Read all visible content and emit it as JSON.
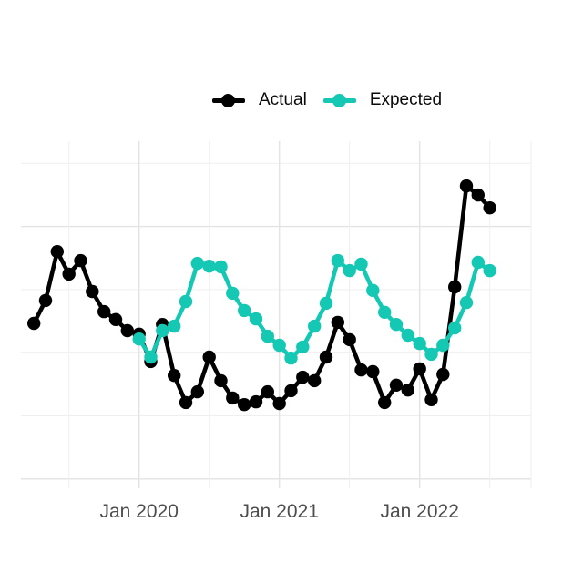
{
  "legend": {
    "items": [
      {
        "label": "Actual",
        "color": "#000000"
      },
      {
        "label": "Expected",
        "color": "#14C8B4"
      }
    ]
  },
  "chart_data": {
    "type": "line",
    "title": "",
    "grid": true,
    "legend_position": "top-center",
    "x_axis": {
      "unit": "month",
      "tick_labels": [
        "Jan 2020",
        "Jan 2021",
        "Jan 2022"
      ],
      "range": [
        "2019-04",
        "2022-07"
      ]
    },
    "y_axis": {
      "labels_shown": false,
      "scale": "unitless index (0 = panel bottom, 100 = panel top); chart displays no y tick labels"
    },
    "series": [
      {
        "name": "Actual",
        "color": "#000000",
        "x": [
          "2019-04",
          "2019-05",
          "2019-06",
          "2019-07",
          "2019-08",
          "2019-09",
          "2019-10",
          "2019-11",
          "2019-12",
          "2020-01",
          "2020-02",
          "2020-03",
          "2020-04",
          "2020-05",
          "2020-06",
          "2020-07",
          "2020-08",
          "2020-09",
          "2020-10",
          "2020-11",
          "2020-12",
          "2021-01",
          "2021-02",
          "2021-03",
          "2021-04",
          "2021-05",
          "2021-06",
          "2021-07",
          "2021-08",
          "2021-09",
          "2021-10",
          "2021-11",
          "2021-12",
          "2022-01",
          "2022-02",
          "2022-03",
          "2022-04",
          "2022-05",
          "2022-06",
          "2022-07"
        ],
        "values": [
          47.5,
          54.1,
          68.2,
          61.7,
          65.6,
          56.7,
          50.9,
          48.6,
          45.4,
          44.4,
          36.5,
          47.2,
          32.5,
          24.7,
          27.8,
          37.8,
          31.0,
          26.0,
          24.1,
          24.9,
          27.8,
          24.4,
          28.1,
          32.0,
          31.0,
          37.8,
          47.8,
          42.8,
          34.1,
          33.6,
          24.7,
          29.7,
          28.3,
          34.4,
          25.5,
          32.8,
          58.0,
          87.1,
          84.5,
          80.8
        ]
      },
      {
        "name": "Expected",
        "color": "#14C8B4",
        "x": [
          "2020-01",
          "2020-02",
          "2020-03",
          "2020-04",
          "2020-05",
          "2020-06",
          "2020-07",
          "2020-08",
          "2020-09",
          "2020-10",
          "2020-11",
          "2020-12",
          "2021-01",
          "2021-02",
          "2021-03",
          "2021-04",
          "2021-05",
          "2021-06",
          "2021-07",
          "2021-08",
          "2021-09",
          "2021-10",
          "2021-11",
          "2021-12",
          "2022-01",
          "2022-02",
          "2022-03",
          "2022-04",
          "2022-05",
          "2022-06",
          "2022-07"
        ],
        "values": [
          43.0,
          37.8,
          45.4,
          46.7,
          53.8,
          64.8,
          64.0,
          63.8,
          56.2,
          51.2,
          48.8,
          43.8,
          41.2,
          37.5,
          40.7,
          46.7,
          53.3,
          65.6,
          62.7,
          64.6,
          57.0,
          50.7,
          47.2,
          44.1,
          41.7,
          38.6,
          41.2,
          46.2,
          53.5,
          65.1,
          62.7
        ]
      }
    ]
  }
}
